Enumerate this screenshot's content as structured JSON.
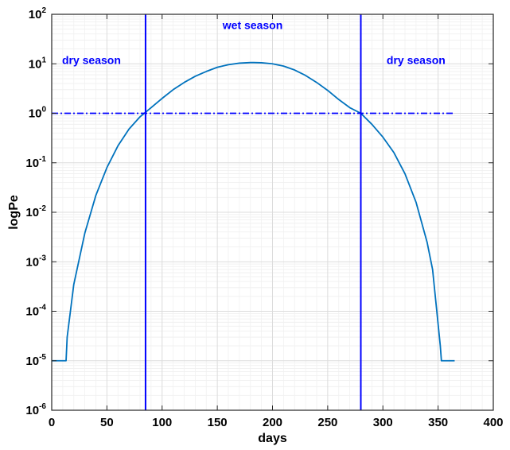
{
  "chart_data": {
    "type": "line",
    "title": "",
    "xlabel": "days",
    "ylabel": "logPe",
    "xlim": [
      0,
      400
    ],
    "ylim": [
      1e-06,
      100
    ],
    "yscale": "log",
    "grid": true,
    "xticks": [
      "0",
      "50",
      "100",
      "150",
      "200",
      "250",
      "300",
      "350",
      "400"
    ],
    "ytick_base": "10",
    "ytick_exponents": [
      "-6",
      "-5",
      "-4",
      "-3",
      "-2",
      "-1",
      "0",
      "1",
      "2"
    ],
    "series": [
      {
        "style": "solid",
        "color": "#0072BD",
        "x": [
          0,
          13,
          14,
          20,
          30,
          40,
          50,
          60,
          70,
          80,
          85,
          90,
          100,
          110,
          120,
          130,
          140,
          150,
          160,
          170,
          180,
          183,
          190,
          200,
          210,
          220,
          230,
          240,
          250,
          260,
          270,
          280,
          290,
          300,
          310,
          320,
          330,
          340,
          345,
          352,
          353,
          365
        ],
        "y": [
          1e-05,
          1e-05,
          3e-05,
          0.00035,
          0.0038,
          0.022,
          0.08,
          0.22,
          0.48,
          0.85,
          1.05,
          1.3,
          2.0,
          3.0,
          4.2,
          5.6,
          7.0,
          8.5,
          9.6,
          10.3,
          10.6,
          10.6,
          10.5,
          10.0,
          9.0,
          7.5,
          5.8,
          4.2,
          2.9,
          1.9,
          1.3,
          1.0,
          0.6,
          0.33,
          0.16,
          0.06,
          0.016,
          0.0025,
          0.0007,
          2e-05,
          1e-05,
          1e-05
        ]
      },
      {
        "style": "dash-dot",
        "color": "#0000FF",
        "x": [
          0,
          365
        ],
        "y": [
          1,
          1
        ]
      }
    ],
    "vlines": [
      {
        "x": 85,
        "color": "#0000FF"
      },
      {
        "x": 280,
        "color": "#0000FF"
      }
    ],
    "annotations": [
      {
        "text": "dry season",
        "x": 36,
        "y": 10,
        "color": "#0000FF"
      },
      {
        "text": "wet season",
        "x": 182,
        "y": 50,
        "color": "#0000FF"
      },
      {
        "text": "dry season",
        "x": 330,
        "y": 10,
        "color": "#0000FF"
      }
    ]
  }
}
